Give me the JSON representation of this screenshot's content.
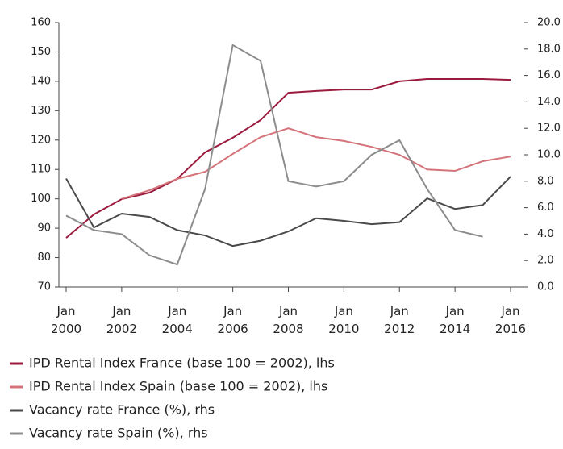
{
  "chart_data": {
    "type": "line",
    "categories": [
      "Jan 2000",
      null,
      "Jan 2002",
      null,
      "Jan 2004",
      null,
      "Jan 2006",
      null,
      "Jan 2008",
      null,
      "Jan 2010",
      null,
      "Jan 2012",
      null,
      "Jan 2014",
      null,
      "Jan 2016"
    ],
    "series": [
      {
        "name": "IPD Rental Index France (base 100 = 2002), lhs",
        "color": "#9b1b3e",
        "values": [
          86.7,
          94.7,
          99.9,
          102.1,
          106.8,
          115.8,
          120.8,
          126.8,
          136.1,
          136.7,
          137.2,
          137.2,
          140.0,
          140.8,
          140.8,
          140.8,
          140.5
        ]
      },
      {
        "name": "IPD Rental Index Spain (base 100 = 2002), lhs",
        "color": "#d4737a",
        "values": [
          null,
          null,
          100.0,
          102.9,
          106.8,
          109.2,
          115.3,
          121.0,
          124.0,
          121.0,
          119.7,
          117.7,
          115.0,
          110.0,
          109.5,
          112.8,
          114.4
        ]
      },
      {
        "name": "Vacancy rate France (%), rhs",
        "color": "#4a4a4a",
        "axis": "y2",
        "values": [
          8.2,
          4.5,
          5.55,
          5.3,
          4.3,
          3.9,
          3.1,
          3.5,
          4.2,
          5.2,
          5.0,
          4.75,
          4.9,
          6.7,
          5.9,
          6.2,
          8.35
        ]
      },
      {
        "name": "Vacancy rate Spain (%), rhs",
        "color": "#8c8c8c",
        "axis": "y2",
        "values": [
          5.4,
          4.3,
          4.0,
          2.4,
          1.7,
          7.4,
          18.3,
          17.1,
          8.0,
          7.6,
          8.0,
          10.0,
          11.1,
          7.4,
          4.3,
          3.8,
          null
        ]
      }
    ],
    "ylim": [
      70,
      160
    ],
    "yticks": [
      70,
      80,
      90,
      100,
      110,
      120,
      130,
      140,
      150,
      160
    ],
    "y2lim": [
      0,
      20
    ],
    "y2ticks": [
      {
        "value": 0,
        "label": "0.0"
      },
      {
        "value": 2,
        "label": "2.0"
      },
      {
        "value": 4,
        "label": "4.0"
      },
      {
        "value": 6,
        "label": "6.0"
      },
      {
        "value": 8,
        "label": "8.0"
      },
      {
        "value": 10,
        "label": "10.0"
      },
      {
        "value": 12,
        "label": "12.0"
      },
      {
        "value": 14,
        "label": "14.0"
      },
      {
        "value": 16,
        "label": "16.0"
      },
      {
        "value": 18,
        "label": "18.0"
      },
      {
        "value": 20,
        "label": "20.0"
      }
    ],
    "legend": "bottom"
  }
}
